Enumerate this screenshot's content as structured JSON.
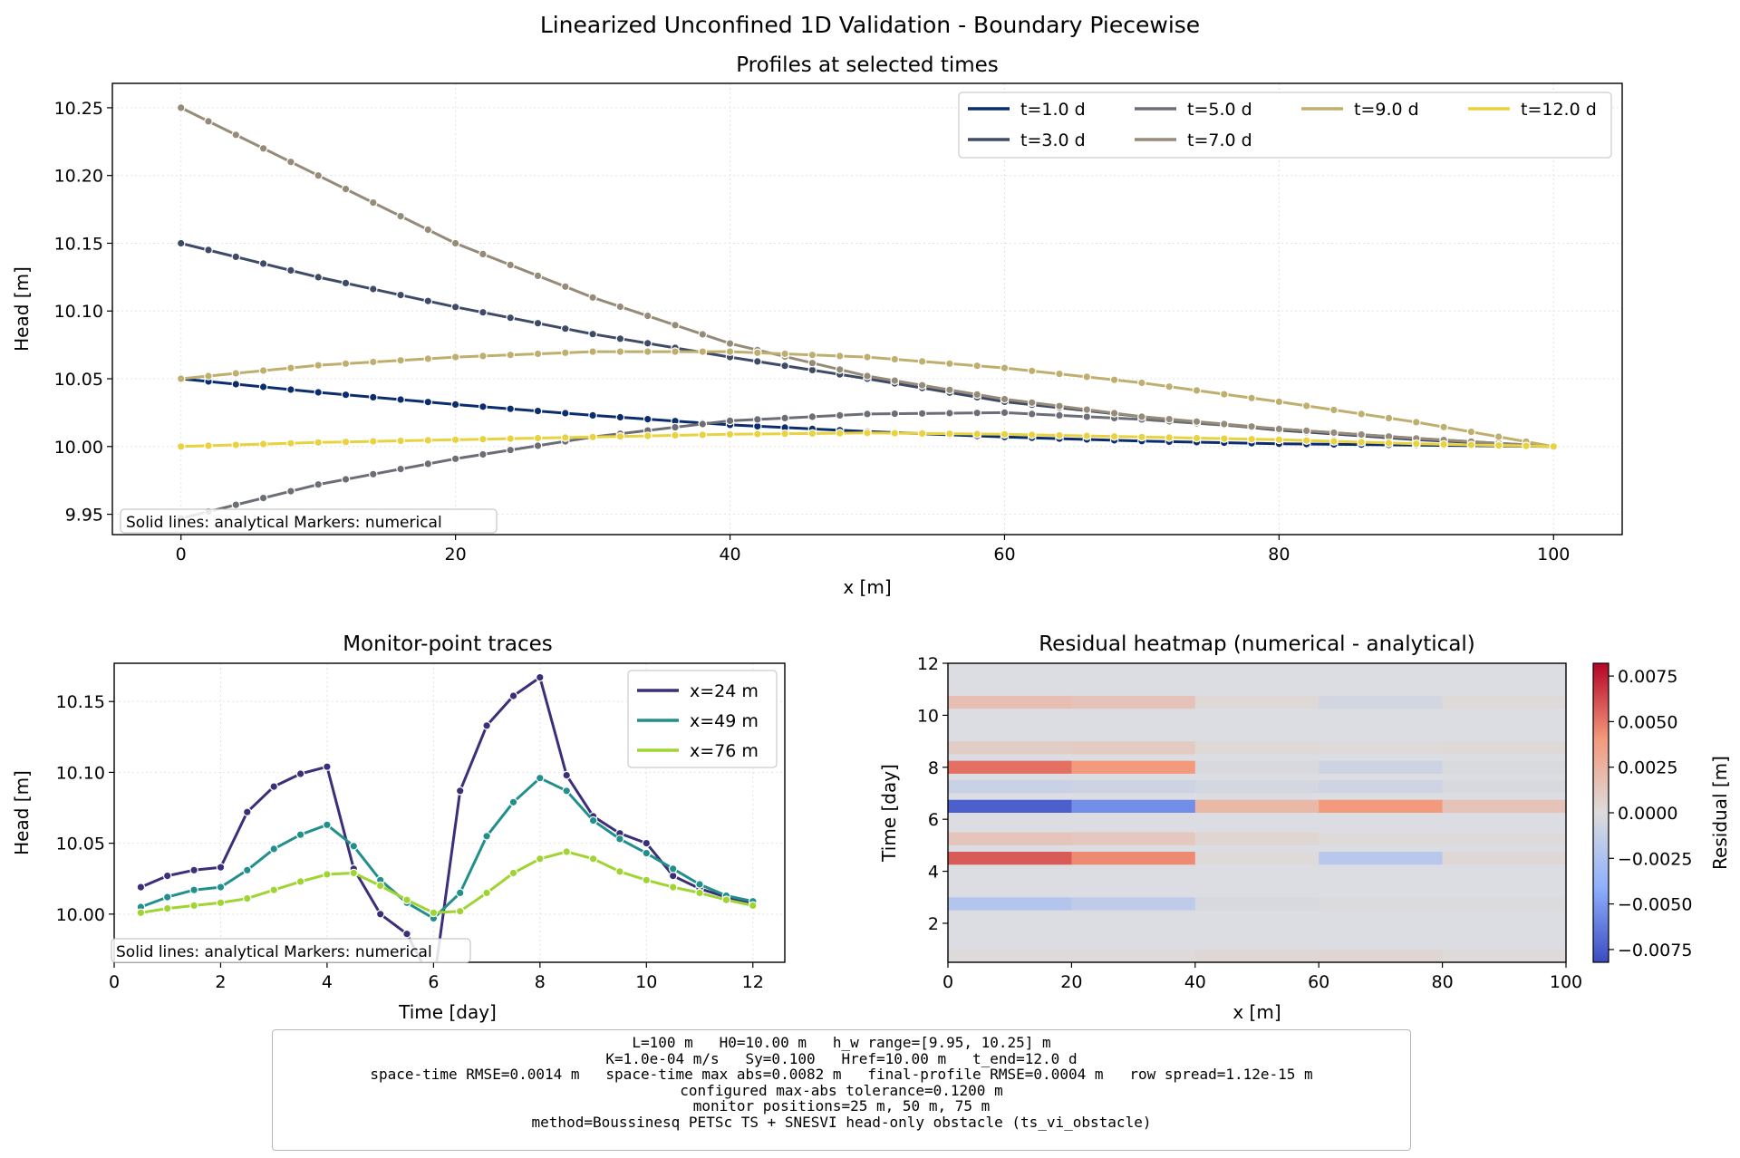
{
  "suptitle": "Linearized Unconfined 1D Validation - Boundary Piecewise",
  "note": "Solid lines: analytical   Markers: numerical",
  "profiles": {
    "title": "Profiles at selected times",
    "xlabel": "x [m]",
    "ylabel": "Head [m]",
    "xticks": [
      "0",
      "20",
      "40",
      "60",
      "80",
      "100"
    ],
    "yticks": [
      "9.95",
      "10.00",
      "10.05",
      "10.10",
      "10.15",
      "10.20",
      "10.25"
    ],
    "legend": [
      "t=1.0 d",
      "t=3.0 d",
      "t=5.0 d",
      "t=7.0 d",
      "t=9.0 d",
      "t=12.0 d"
    ]
  },
  "monitor": {
    "title": "Monitor-point traces",
    "xlabel": "Time [day]",
    "ylabel": "Head [m]",
    "xticks": [
      "0",
      "2",
      "4",
      "6",
      "8",
      "10",
      "12"
    ],
    "yticks": [
      "10.00",
      "10.05",
      "10.10",
      "10.15"
    ],
    "legend": [
      "x=24 m",
      "x=49 m",
      "x=76 m"
    ]
  },
  "heatmap": {
    "title": "Residual heatmap (numerical - analytical)",
    "xlabel": "x [m]",
    "ylabel": "Time [day]",
    "xticks": [
      "0",
      "20",
      "40",
      "60",
      "80",
      "100"
    ],
    "yticks": [
      "2",
      "4",
      "6",
      "8",
      "10",
      "12"
    ],
    "cbar_label": "Residual [m]",
    "cbar_ticks": [
      "0.0075",
      "0.0050",
      "0.0025",
      "0.0000",
      "−0.0025",
      "−0.0050",
      "−0.0075"
    ]
  },
  "params": [
    "L=100 m   H0=10.00 m   h_w range=[9.95, 10.25] m",
    "K=1.0e-04 m/s   Sy=0.100   Href=10.00 m   t_end=12.0 d",
    "space-time RMSE=0.0014 m   space-time max abs=0.0082 m   final-profile RMSE=0.0004 m   row spread=1.12e-15 m",
    "configured max-abs tolerance=0.1200 m",
    "monitor positions=25 m, 50 m, 75 m",
    "method=Boussinesq PETSc TS + SNESVI head-only obstacle (ts_vi_obstacle)"
  ],
  "chart_data": [
    {
      "type": "line",
      "title": "Profiles at selected times",
      "xlabel": "x [m]",
      "ylabel": "Head [m]",
      "xlim": [
        -5,
        105
      ],
      "ylim": [
        9.935,
        10.268
      ],
      "grid": true,
      "legend_position": "top-right",
      "x": [
        0,
        10,
        20,
        30,
        40,
        50,
        60,
        70,
        80,
        90,
        100
      ],
      "series": [
        {
          "name": "t=1.0 d",
          "color": "#0b2d6e",
          "values": [
            10.05,
            10.04,
            10.031,
            10.023,
            10.016,
            10.011,
            10.007,
            10.004,
            10.002,
            10.001,
            10.0
          ]
        },
        {
          "name": "t=3.0 d",
          "color": "#3f4b66",
          "values": [
            10.15,
            10.125,
            10.103,
            10.083,
            10.066,
            10.05,
            10.033,
            10.022,
            10.012,
            10.005,
            10.0
          ]
        },
        {
          "name": "t=5.0 d",
          "color": "#6b6e74",
          "values": [
            9.947,
            9.972,
            9.991,
            10.007,
            10.019,
            10.024,
            10.025,
            10.02,
            10.013,
            10.006,
            10.0
          ]
        },
        {
          "name": "t=7.0 d",
          "color": "#958b78",
          "values": [
            10.25,
            10.2,
            10.15,
            10.11,
            10.076,
            10.052,
            10.035,
            10.022,
            10.013,
            10.006,
            10.0
          ]
        },
        {
          "name": "t=9.0 d",
          "color": "#bfaf6e",
          "values": [
            10.05,
            10.06,
            10.066,
            10.07,
            10.07,
            10.066,
            10.058,
            10.047,
            10.033,
            10.018,
            10.0
          ]
        },
        {
          "name": "t=12.0 d",
          "color": "#e8d23f",
          "values": [
            10.0,
            10.003,
            10.005,
            10.007,
            10.009,
            10.01,
            10.009,
            10.007,
            10.005,
            10.002,
            10.0
          ]
        }
      ]
    },
    {
      "type": "line",
      "title": "Monitor-point traces",
      "xlabel": "Time [day]",
      "ylabel": "Head [m]",
      "xlim": [
        0,
        12.6
      ],
      "ylim": [
        9.966,
        10.177
      ],
      "grid": true,
      "legend_position": "top-right",
      "x": [
        0.5,
        1.0,
        1.5,
        2.0,
        2.5,
        3.0,
        3.5,
        4.0,
        4.5,
        5.0,
        5.5,
        6.0,
        6.5,
        7.0,
        7.5,
        8.0,
        8.5,
        9.0,
        9.5,
        10.0,
        10.5,
        11.0,
        11.5,
        12.0
      ],
      "series": [
        {
          "name": "x=24 m",
          "color": "#3b2f7a",
          "values": [
            10.019,
            10.027,
            10.031,
            10.033,
            10.072,
            10.09,
            10.099,
            10.104,
            10.032,
            10.0,
            9.986,
            9.95,
            10.087,
            10.133,
            10.154,
            10.167,
            10.098,
            10.069,
            10.057,
            10.05,
            10.027,
            10.018,
            10.012,
            10.008
          ]
        },
        {
          "name": "x=49 m",
          "color": "#21908c",
          "values": [
            10.005,
            10.012,
            10.017,
            10.019,
            10.031,
            10.046,
            10.056,
            10.063,
            10.048,
            10.024,
            10.008,
            9.997,
            10.015,
            10.055,
            10.079,
            10.096,
            10.087,
            10.066,
            10.053,
            10.043,
            10.032,
            10.021,
            10.013,
            10.009
          ]
        },
        {
          "name": "x=76 m",
          "color": "#9fd433",
          "values": [
            10.001,
            10.004,
            10.006,
            10.008,
            10.011,
            10.017,
            10.023,
            10.028,
            10.029,
            10.02,
            10.01,
            10.001,
            10.002,
            10.015,
            10.029,
            10.039,
            10.044,
            10.039,
            10.03,
            10.024,
            10.019,
            10.015,
            10.01,
            10.006
          ]
        }
      ]
    },
    {
      "type": "heatmap",
      "title": "Residual heatmap (numerical - analytical)",
      "xlabel": "x [m]",
      "ylabel": "Time [day]",
      "xlim": [
        0,
        100
      ],
      "ylim": [
        0.5,
        12
      ],
      "colorbar": {
        "label": "Residual [m]",
        "range": [
          -0.0082,
          0.0082
        ],
        "colormap": "coolwarm"
      },
      "x_edges": [
        0,
        20,
        40,
        60,
        80,
        100
      ],
      "y_bands": [
        {
          "t": [
            0.5,
            1.0
          ],
          "values": [
            0.0001,
            0.0001,
            0.0003,
            0.0004,
            0.0001
          ]
        },
        {
          "t": [
            2.5,
            3.0
          ],
          "values": [
            -0.0021,
            -0.0016,
            -0.0003,
            -0.0001,
            -0.0001
          ]
        },
        {
          "t": [
            4.25,
            4.75
          ],
          "values": [
            0.0058,
            0.0045,
            0.0001,
            -0.0019,
            0.0003
          ]
        },
        {
          "t": [
            5.0,
            5.5
          ],
          "values": [
            0.0014,
            0.0012,
            0.0004,
            0.0001,
            0.0001
          ]
        },
        {
          "t": [
            6.25,
            6.75
          ],
          "values": [
            -0.0074,
            -0.0055,
            0.0022,
            0.004,
            0.0015
          ]
        },
        {
          "t": [
            7.0,
            7.5
          ],
          "values": [
            -0.001,
            -0.0008,
            -0.0005,
            -0.0007,
            -0.0003
          ]
        },
        {
          "t": [
            7.75,
            8.25
          ],
          "values": [
            0.0052,
            0.004,
            -0.0003,
            -0.0008,
            -0.0002
          ]
        },
        {
          "t": [
            8.5,
            9.0
          ],
          "values": [
            0.0009,
            0.001,
            0.0002,
            0.0001,
            0.0002
          ]
        },
        {
          "t": [
            10.25,
            10.75
          ],
          "values": [
            0.0018,
            0.0015,
            0.0002,
            -0.0006,
            0.0001
          ]
        }
      ]
    }
  ]
}
